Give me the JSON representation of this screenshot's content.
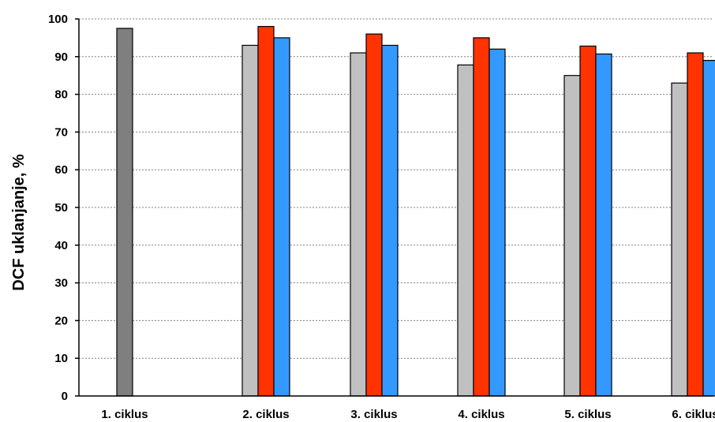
{
  "chart_data": {
    "type": "bar",
    "ylabel": "DCF uklanjanje, %",
    "xlabel": "",
    "ylim": [
      0,
      100
    ],
    "yticks": [
      0,
      10,
      20,
      30,
      40,
      50,
      60,
      70,
      80,
      90,
      100
    ],
    "grid": true,
    "legend": "none",
    "categories": [
      "1. ciklus",
      "2. ciklus",
      "3. ciklus",
      "4. ciklus",
      "5.  ciklus",
      "6. ciklus"
    ],
    "series": [
      {
        "color": "#7f7f7f",
        "values": [
          97.5,
          null,
          null,
          null,
          null,
          null
        ]
      },
      {
        "color": "#c0c0c0",
        "values": [
          null,
          93,
          91,
          87.8,
          85,
          83
        ]
      },
      {
        "color": "#ff3300",
        "values": [
          null,
          98,
          96,
          95,
          92.8,
          91
        ]
      },
      {
        "color": "#3399ff",
        "values": [
          null,
          95,
          93,
          92,
          90.7,
          89
        ]
      }
    ]
  }
}
